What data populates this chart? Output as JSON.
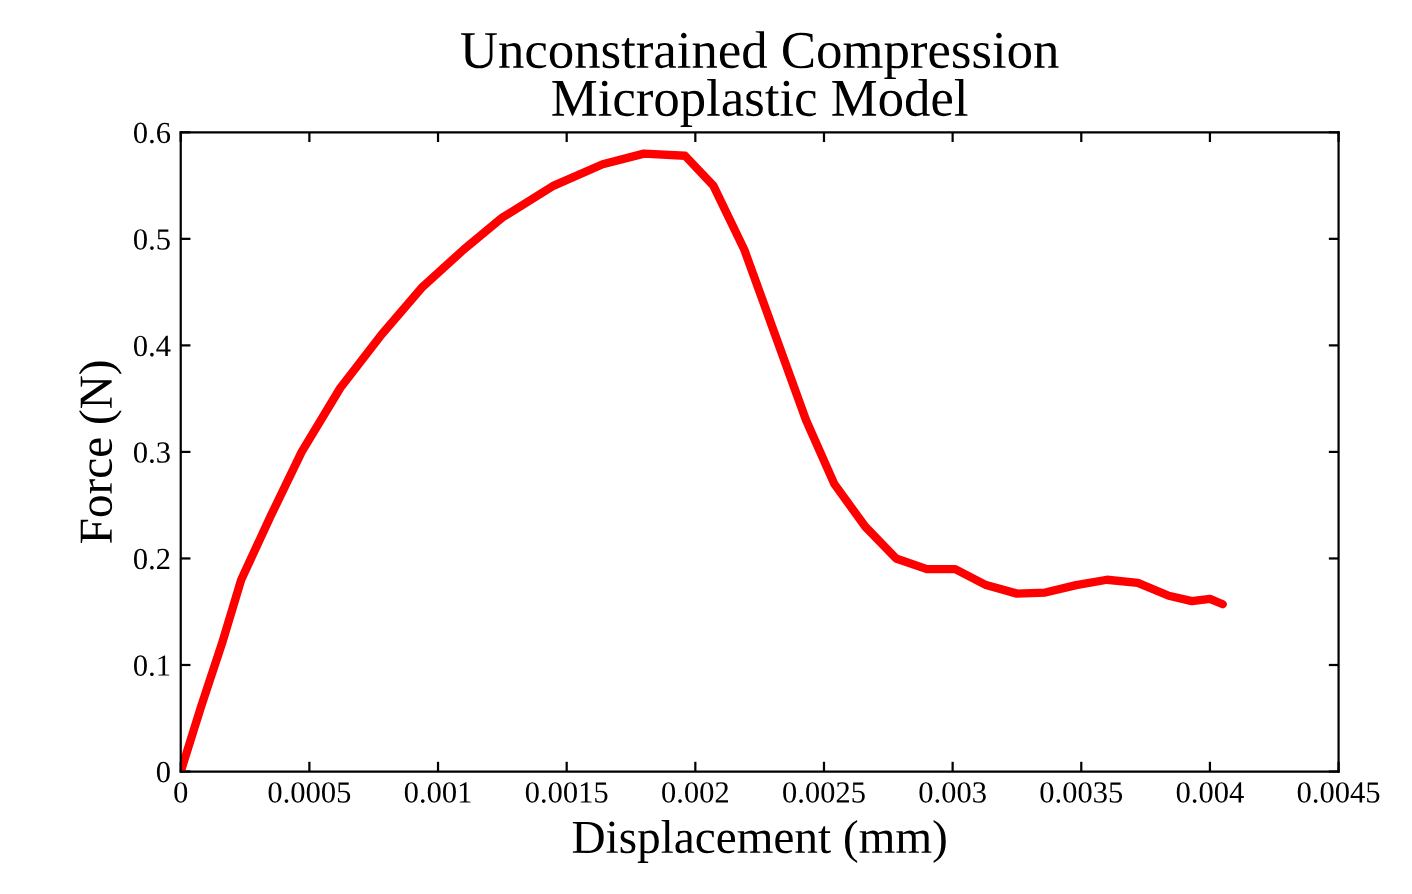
{
  "chart_data": {
    "type": "line",
    "title": "Unconstrained Compression\nMicroplastic Model",
    "xlabel": "Displacement (mm)",
    "ylabel": "Force (N)",
    "series": [
      {
        "color": "#ff0000",
        "x": [
          0,
          7.8e-05,
          0.00016,
          0.000235,
          0.00035,
          0.00047,
          0.00062,
          0.00078,
          0.00094,
          0.0011,
          0.00125,
          0.00145,
          0.00164,
          0.0018,
          0.00196,
          0.00207,
          0.00219,
          0.00231,
          0.00243,
          0.00254,
          0.00266,
          0.00278,
          0.0029,
          0.00301,
          0.00313,
          0.00325,
          0.00336,
          0.00348,
          0.0036,
          0.00372,
          0.00384,
          0.00393,
          0.004,
          0.00405
        ],
        "values": [
          0,
          0.06,
          0.12,
          0.18,
          0.24,
          0.3,
          0.36,
          0.41,
          0.455,
          0.49,
          0.52,
          0.55,
          0.57,
          0.58,
          0.578,
          0.55,
          0.49,
          0.41,
          0.33,
          0.27,
          0.23,
          0.2,
          0.19,
          0.19,
          0.175,
          0.167,
          0.168,
          0.175,
          0.18,
          0.177,
          0.165,
          0.16,
          0.162,
          0.157
        ]
      }
    ],
    "xlim": [
      0,
      0.0045
    ],
    "xticks": [
      0,
      0.0005,
      0.001,
      0.0015,
      0.002,
      0.0025,
      0.003,
      0.0035,
      0.004,
      0.0045
    ],
    "ylim": [
      0,
      0.6
    ],
    "yticks": [
      0,
      0.1,
      0.2,
      0.3,
      0.4,
      0.5,
      0.6
    ],
    "grid": false,
    "legend": false,
    "marker": "none",
    "line_style": "solid"
  }
}
